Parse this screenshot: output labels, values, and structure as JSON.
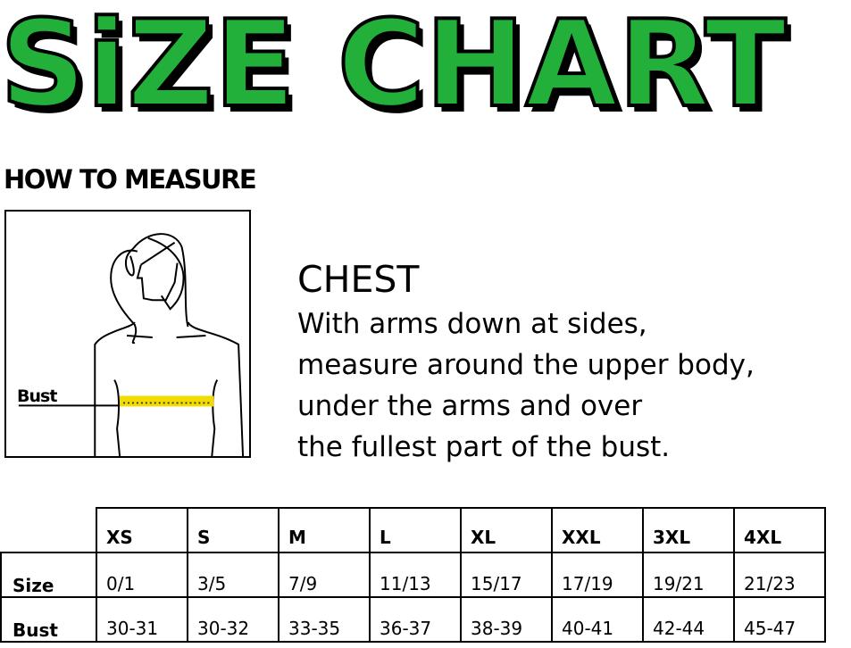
{
  "title": "SiZE CHART",
  "title_color": "#22b03a",
  "how_to_measure": "HOW TO MEASURE",
  "figure": {
    "bust_label": "Bust",
    "tape_color": "#f2dc00"
  },
  "chest": {
    "heading": "CHEST",
    "lines": [
      "With arms down at sides,",
      "measure around the upper body,",
      "under the arms and over",
      "the fullest part of the bust."
    ]
  },
  "table": {
    "sizes": [
      "XS",
      "S",
      "M",
      "L",
      "XL",
      "XXL",
      "3XL",
      "4XL"
    ],
    "rows": [
      {
        "label": "Size",
        "values": [
          "0/1",
          "3/5",
          "7/9",
          "11/13",
          "15/17",
          "17/19",
          "19/21",
          "21/23"
        ]
      },
      {
        "label": "Bust",
        "values": [
          "30-31",
          "30-32",
          "33-35",
          "36-37",
          "38-39",
          "40-41",
          "42-44",
          "45-47"
        ]
      }
    ]
  }
}
